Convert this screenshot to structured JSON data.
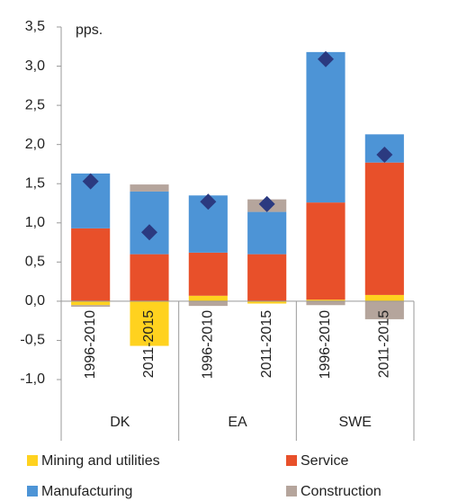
{
  "chart_data": {
    "type": "stacked_bar",
    "annotation": "pps.",
    "categories": [
      "1996-2010",
      "2011-2015",
      "1996-2010",
      "2011-2015",
      "1996-2010",
      "2011-2015"
    ],
    "groups": [
      "DK",
      "EA",
      "SWE"
    ],
    "series": [
      {
        "name": "Mining and utilities",
        "color": "#ffd21f",
        "values": [
          -0.05,
          -0.57,
          0.07,
          -0.03,
          0.02,
          0.08
        ]
      },
      {
        "name": "Service",
        "color": "#e8502a",
        "values": [
          0.93,
          0.6,
          0.55,
          0.6,
          1.24,
          1.69
        ]
      },
      {
        "name": "Manufacturing",
        "color": "#4d94d6",
        "values": [
          0.7,
          0.8,
          0.73,
          0.54,
          1.92,
          0.36
        ]
      },
      {
        "name": "Construction",
        "color": "#b5a59c",
        "values": [
          -0.02,
          0.09,
          -0.06,
          0.16,
          -0.05,
          -0.23
        ]
      }
    ],
    "totals": {
      "color": "#2b3a80",
      "values": [
        1.53,
        0.88,
        1.27,
        1.24,
        3.09,
        1.87
      ]
    },
    "ylim": [
      -1.0,
      3.5
    ],
    "yticks": [
      {
        "value": -1.0,
        "label": "-1,0"
      },
      {
        "value": -0.5,
        "label": "-0,5"
      },
      {
        "value": 0.0,
        "label": "0,0"
      },
      {
        "value": 0.5,
        "label": "0,5"
      },
      {
        "value": 1.0,
        "label": "1,0"
      },
      {
        "value": 1.5,
        "label": "1,5"
      },
      {
        "value": 2.0,
        "label": "2,0"
      },
      {
        "value": 2.5,
        "label": "2,5"
      },
      {
        "value": 3.0,
        "label": "3,0"
      },
      {
        "value": 3.5,
        "label": "3,5"
      }
    ]
  }
}
